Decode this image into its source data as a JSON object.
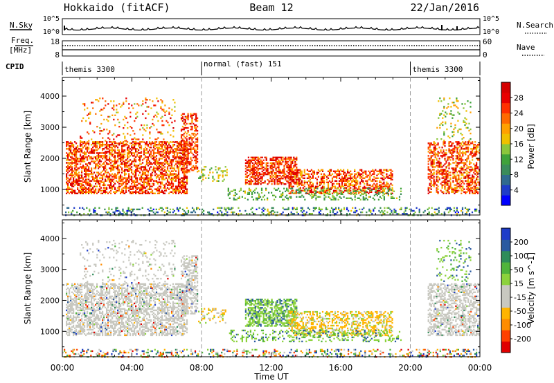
{
  "header": {
    "station": "Hokkaido (fitACF)",
    "beam": "Beam 12",
    "date": "22/Jan/2016"
  },
  "side_labels": {
    "nsky": "N.Sky",
    "nsearch": "N.Search",
    "freq_line1": "Freq.",
    "freq_line2": "[MHz]",
    "nave": "Nave",
    "cpid": "CPID"
  },
  "noise_axis": {
    "top": "10^5",
    "bottom": "10^0",
    "right_top": "10^5",
    "right_bottom": "10^0"
  },
  "freq_axis": {
    "left_top": "18",
    "left_bottom": "8",
    "right_top": "60",
    "right_bottom": "0"
  },
  "cpid_segments": [
    {
      "label": "themis 3300",
      "start_hour": 0,
      "end_hour": 8
    },
    {
      "label": "normal (fast) 151",
      "start_hour": 8,
      "end_hour": 20
    },
    {
      "label": "themis 3300",
      "start_hour": 20,
      "end_hour": 24
    }
  ],
  "colors": {
    "power_scale": [
      "#0000ff",
      "#1e3cc8",
      "#2f6a8f",
      "#3a8c5a",
      "#3fa23a",
      "#8cc63c",
      "#f0c000",
      "#ffa000",
      "#ff6a00",
      "#ff3000",
      "#e80000",
      "#d40000"
    ],
    "velocity_scale": [
      "#e00000",
      "#ff4000",
      "#ff8c00",
      "#ffb400",
      "#c8c8c0",
      "#c8c8c0",
      "#8cd23c",
      "#50b43c",
      "#2e8c5a",
      "#2a5aa0",
      "#1e3cc8"
    ]
  },
  "chart_data": [
    {
      "type": "heatmap",
      "name": "power",
      "ylabel": "Slant Range [km]",
      "ylim": [
        180,
        4600
      ],
      "xlim_hours": [
        0,
        24
      ],
      "yticks": [
        1000,
        2000,
        3000,
        4000
      ],
      "colorbar_label": "Power [dB]",
      "colorbar_ticks": [
        "4",
        "8",
        "12",
        "16",
        "20",
        "24",
        "28"
      ],
      "colorbar_range": [
        0,
        30
      ]
    },
    {
      "type": "heatmap",
      "name": "velocity",
      "ylabel": "Slant Range [km]",
      "ylim": [
        180,
        4600
      ],
      "xlim_hours": [
        0,
        24
      ],
      "yticks": [
        1000,
        2000,
        3000,
        4000
      ],
      "colorbar_label": "Velocity [m s^-1]",
      "colorbar_ticks": [
        "-200",
        "-100",
        "-50",
        "-15",
        "15",
        "50",
        "100",
        "200"
      ],
      "xticks": [
        "00:00",
        "04:00",
        "08:00",
        "12:00",
        "16:00",
        "20:00",
        "00:00"
      ],
      "xlabel": "Time UT"
    }
  ]
}
